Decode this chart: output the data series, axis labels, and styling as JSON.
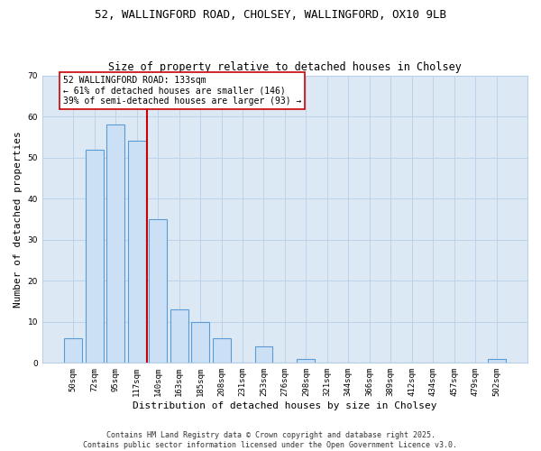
{
  "title1": "52, WALLINGFORD ROAD, CHOLSEY, WALLINGFORD, OX10 9LB",
  "title2": "Size of property relative to detached houses in Cholsey",
  "xlabel": "Distribution of detached houses by size in Cholsey",
  "ylabel": "Number of detached properties",
  "categories": [
    "50sqm",
    "72sqm",
    "95sqm",
    "117sqm",
    "140sqm",
    "163sqm",
    "185sqm",
    "208sqm",
    "231sqm",
    "253sqm",
    "276sqm",
    "298sqm",
    "321sqm",
    "344sqm",
    "366sqm",
    "389sqm",
    "412sqm",
    "434sqm",
    "457sqm",
    "479sqm",
    "502sqm"
  ],
  "values": [
    6,
    52,
    58,
    54,
    35,
    13,
    10,
    6,
    0,
    4,
    0,
    1,
    0,
    0,
    0,
    0,
    0,
    0,
    0,
    0,
    1
  ],
  "bar_color": "#cce0f5",
  "bar_edge_color": "#5b9bd5",
  "bar_edge_width": 0.8,
  "vline_x": 3.5,
  "vline_color": "#cc0000",
  "annotation_text": "52 WALLINGFORD ROAD: 133sqm\n← 61% of detached houses are smaller (146)\n39% of semi-detached houses are larger (93) →",
  "annotation_box_color": "#ffffff",
  "annotation_box_edge": "#cc0000",
  "ylim": [
    0,
    70
  ],
  "yticks": [
    0,
    10,
    20,
    30,
    40,
    50,
    60,
    70
  ],
  "plot_bg_color": "#dce9f5",
  "footer_text": "Contains HM Land Registry data © Crown copyright and database right 2025.\nContains public sector information licensed under the Open Government Licence v3.0.",
  "title_fontsize": 9,
  "subtitle_fontsize": 8.5,
  "tick_fontsize": 6.5,
  "ylabel_fontsize": 8,
  "xlabel_fontsize": 8,
  "annotation_fontsize": 7,
  "footer_fontsize": 6
}
